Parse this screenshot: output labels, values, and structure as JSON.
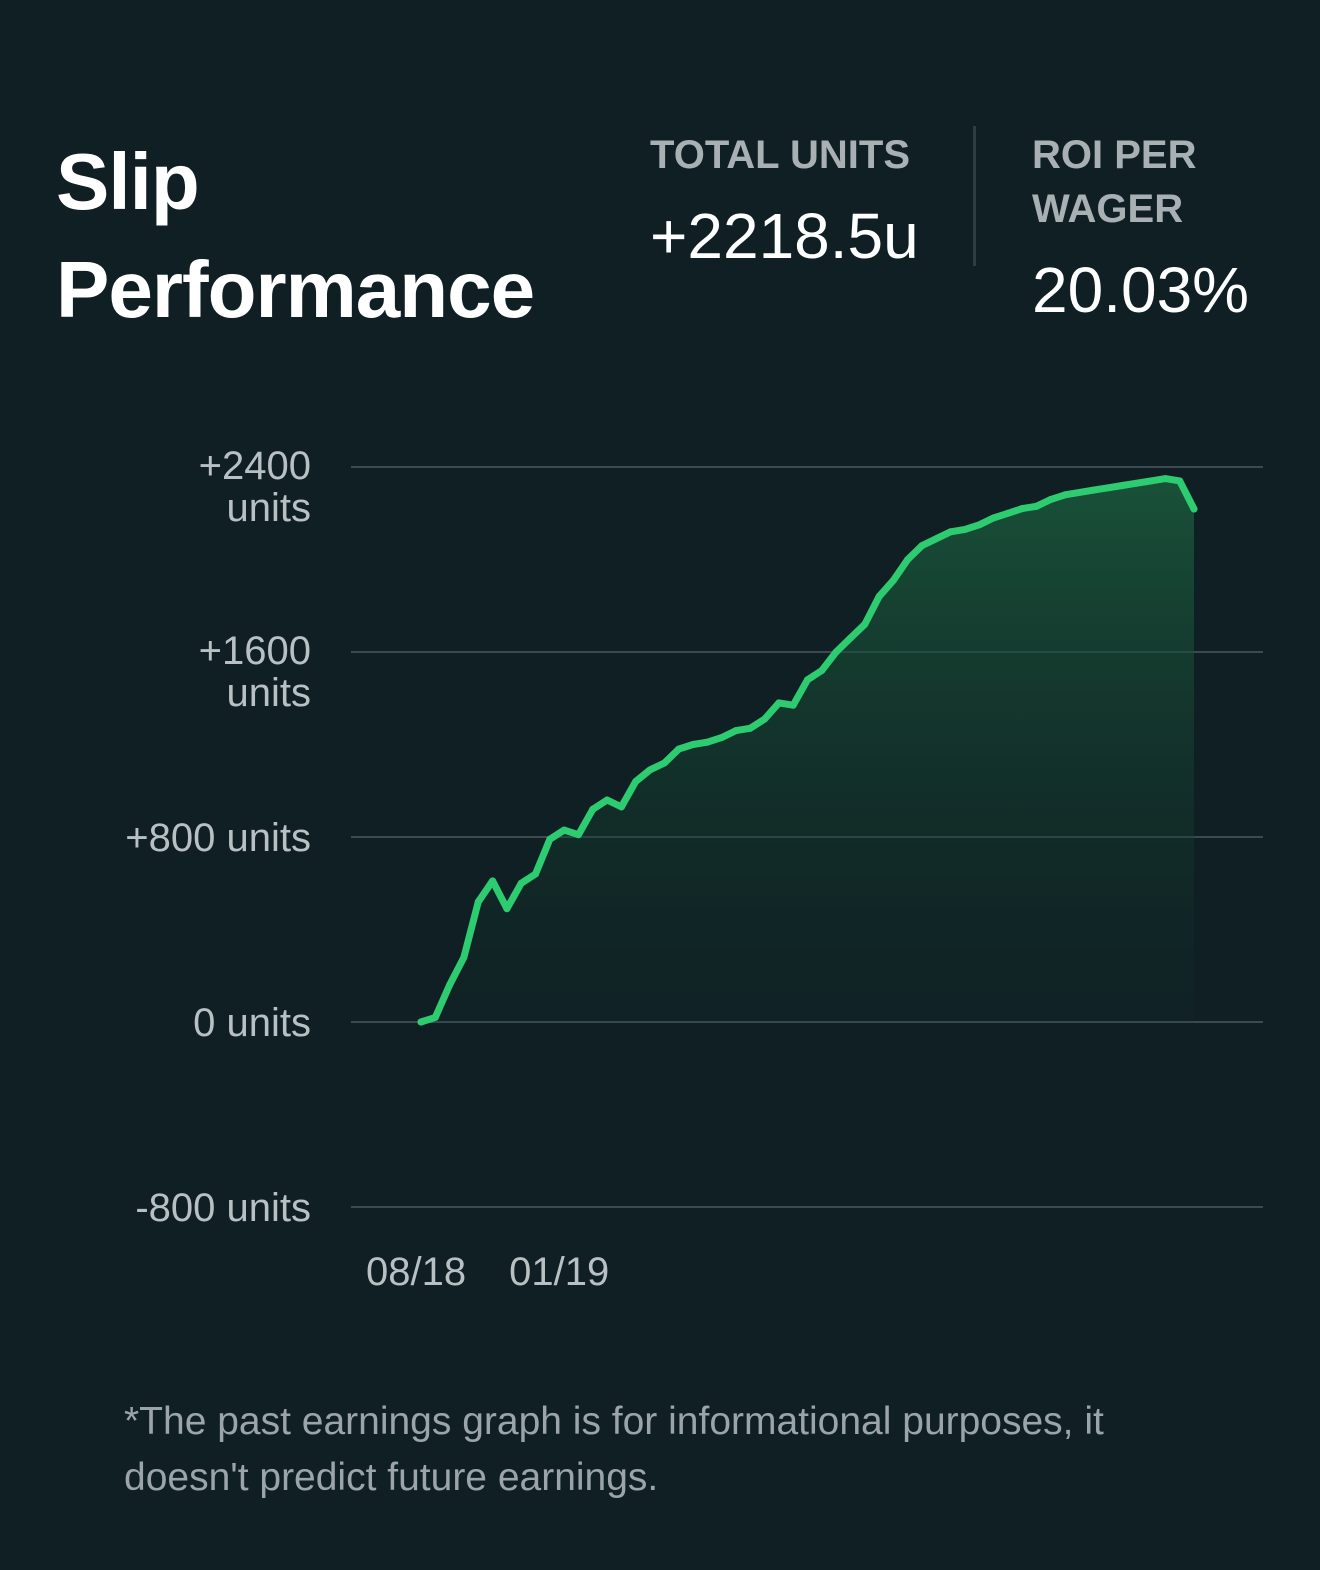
{
  "header": {
    "title": "Slip Performance"
  },
  "stats": {
    "total_units": {
      "label": "TOTAL UNITS",
      "value": "+2218.5u"
    },
    "roi_per_wager": {
      "label": "ROI PER WAGER",
      "value": "20.03%"
    }
  },
  "footnote": "*The past earnings graph is for informational purposes, it doesn't predict future earnings.",
  "colors": {
    "background": "#0f1f24",
    "line": "#2ecc71",
    "fill": "#1a5a3a",
    "gridline": "#3a4a50",
    "label_muted": "#a8b0b3"
  },
  "chart_data": {
    "type": "area",
    "ylim": [
      -800,
      2400
    ],
    "y_ticks": [
      {
        "value": 2400,
        "label": [
          "+2400",
          "units"
        ]
      },
      {
        "value": 1600,
        "label": [
          "+1600",
          "units"
        ]
      },
      {
        "value": 800,
        "label": [
          "+800 units"
        ]
      },
      {
        "value": 0,
        "label": [
          "0 units"
        ]
      },
      {
        "value": -800,
        "label": [
          "-800 units"
        ]
      }
    ],
    "x_ticks": [
      {
        "x": 0,
        "label": "08/18"
      },
      {
        "x": 5,
        "label": "01/19"
      }
    ],
    "grid": true,
    "series": [
      {
        "x": [
          0,
          0.5,
          1,
          1.5,
          2,
          2.5,
          3,
          3.5,
          4,
          4.5,
          5,
          5.5,
          6,
          6.5,
          7,
          7.5,
          8,
          8.5,
          9,
          9.5,
          10,
          10.5,
          11,
          11.5,
          12,
          12.5,
          13,
          13.5,
          14,
          14.5,
          15,
          15.5,
          16,
          16.5,
          17,
          17.5,
          18,
          18.5,
          19,
          19.5,
          20,
          20.5,
          21,
          21.5,
          22,
          22.5,
          23,
          23.5,
          24,
          24.5,
          25,
          25.5,
          26,
          26.5,
          27
        ],
        "values": [
          0,
          20,
          160,
          280,
          520,
          610,
          490,
          600,
          640,
          790,
          830,
          810,
          920,
          960,
          930,
          1040,
          1090,
          1120,
          1180,
          1200,
          1210,
          1230,
          1260,
          1270,
          1310,
          1380,
          1370,
          1480,
          1520,
          1600,
          1660,
          1720,
          1840,
          1910,
          2000,
          2060,
          2090,
          2120,
          2130,
          2150,
          2180,
          2200,
          2220,
          2230,
          2260,
          2280,
          2290,
          2300,
          2310,
          2320,
          2330,
          2340,
          2350,
          2340,
          2218.5
        ]
      }
    ]
  }
}
